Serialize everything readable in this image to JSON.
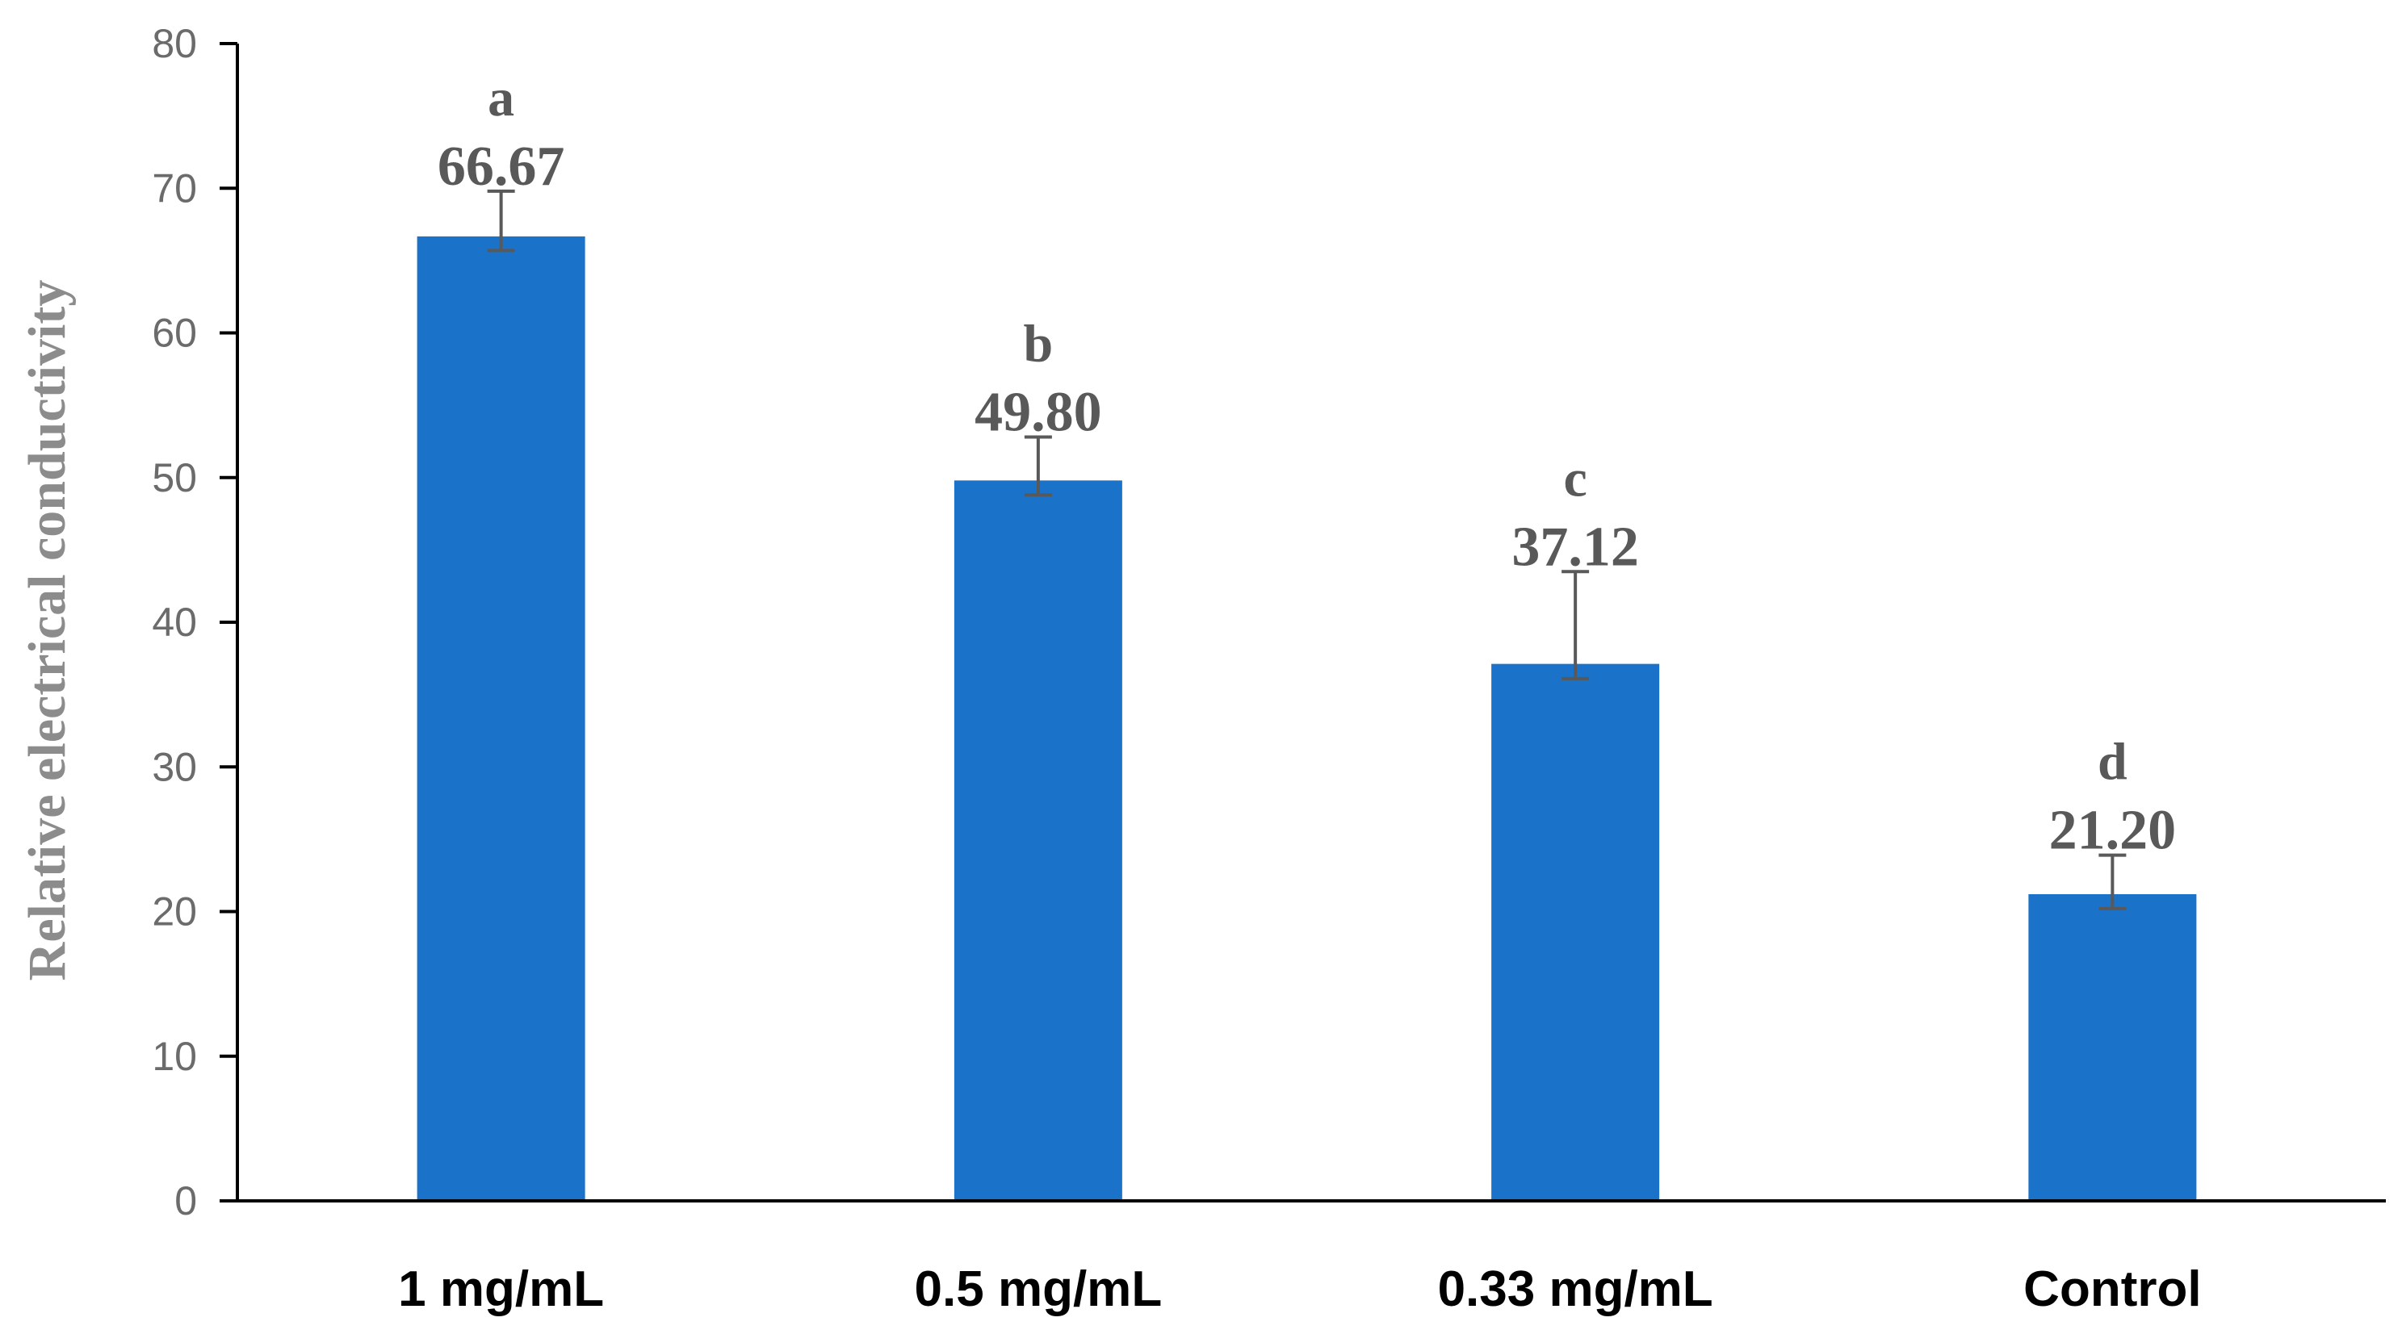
{
  "chart_data": {
    "type": "bar",
    "title": "",
    "xlabel": "",
    "ylabel": "Relative electrical conductivity",
    "ylim": [
      0,
      80
    ],
    "ytick_step": 10,
    "yticks": [
      "0",
      "10",
      "20",
      "30",
      "40",
      "50",
      "60",
      "70",
      "80"
    ],
    "grid": false,
    "categories": [
      "1 mg/mL",
      "0.5 mg/mL",
      "0.33 mg/mL",
      "Control"
    ],
    "values": [
      66.67,
      49.8,
      37.12,
      21.2
    ],
    "value_labels": [
      "66.67",
      "49.80",
      "37.12",
      "21.20"
    ],
    "significance": [
      "a",
      "b",
      "c",
      "d"
    ],
    "error_upper": [
      69.8,
      52.8,
      43.5,
      23.9
    ],
    "error_lower": [
      65.7,
      48.8,
      36.1,
      20.2
    ],
    "colors": {
      "bar": "#1a73c9",
      "axis": "#000000",
      "error": "#595959"
    }
  }
}
